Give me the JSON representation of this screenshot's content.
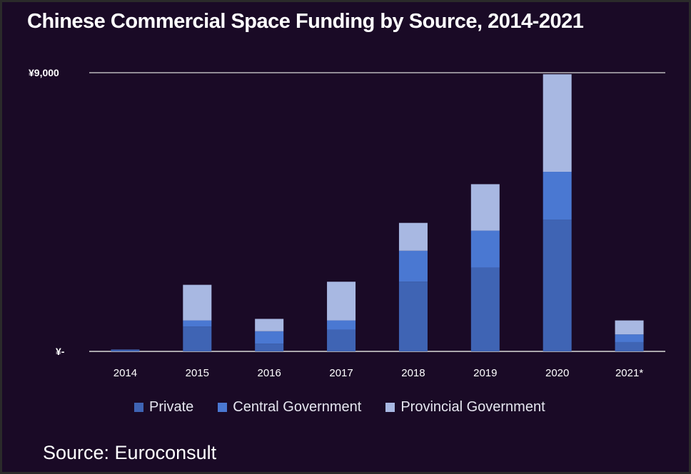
{
  "title": "Chinese Commercial Space Funding by Source, 2014-2021",
  "source_text": "Source: Euroconsult",
  "colors": {
    "background": "#1a0a26",
    "private": "#3f64b4",
    "central_government": "#4a78d2",
    "provincial_government": "#a8b8e2",
    "gridline": "#d9d9d9"
  },
  "chart_data": {
    "type": "bar",
    "stacked": true,
    "categories": [
      "2014",
      "2015",
      "2016",
      "2017",
      "2018",
      "2019",
      "2020",
      "2021*"
    ],
    "series": [
      {
        "name": "Private",
        "values": [
          60,
          800,
          250,
          700,
          2250,
          2700,
          4250,
          300
        ]
      },
      {
        "name": "Central Government",
        "values": [
          0,
          200,
          400,
          300,
          1000,
          1200,
          1550,
          250
        ]
      },
      {
        "name": "Provincial Government",
        "values": [
          0,
          1150,
          400,
          1250,
          900,
          1500,
          3150,
          450
        ]
      }
    ],
    "ylim": [
      0,
      9000
    ],
    "yticks": [
      {
        "value": 0,
        "label": "¥-"
      },
      {
        "value": 9000,
        "label": "¥9,000"
      }
    ],
    "xlabel": "",
    "ylabel": "",
    "legend_position": "bottom",
    "grid": true
  }
}
